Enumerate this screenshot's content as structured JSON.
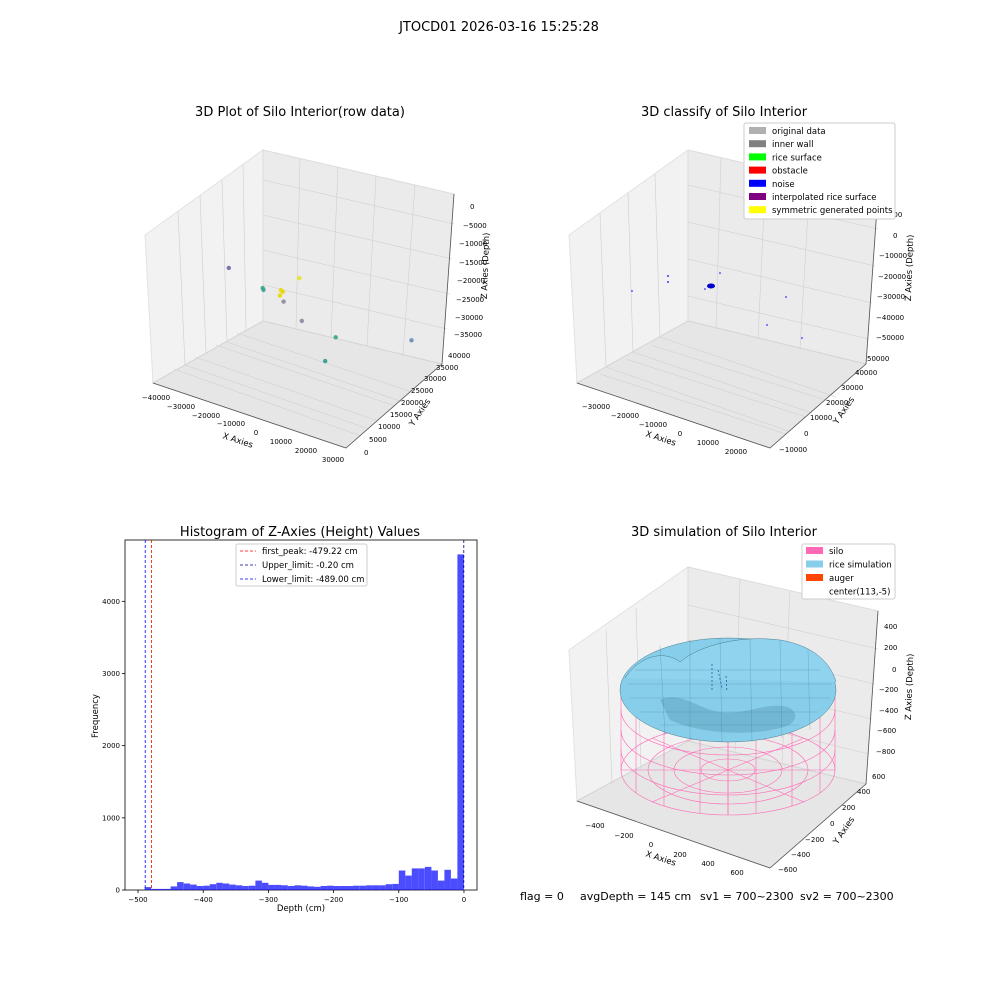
{
  "suptitle": "JTOCD01 2026-03-16 15:25:28",
  "chart_data": [
    {
      "type": "scatter",
      "projection": "3d",
      "title": "3D Plot of Silo Interior(row data)",
      "xlabel": "X Axies",
      "ylabel": "Y Axies",
      "zlabel": "Z Axies (Depth)",
      "xticks": [
        "−40000",
        "−30000",
        "−20000",
        "−10000",
        "0",
        "10000",
        "20000",
        "30000"
      ],
      "yticks": [
        "0",
        "5000",
        "10000",
        "15000",
        "20000",
        "25000",
        "30000",
        "35000",
        "40000"
      ],
      "zticks": [
        "0",
        "−5000",
        "−10000",
        "−15000",
        "−20000",
        "−25000",
        "−30000",
        "−35000"
      ],
      "xlim": [
        -42000,
        32000
      ],
      "ylim": [
        0,
        42000
      ],
      "zlim": [
        -38000,
        1000
      ],
      "points": [
        {
          "x": -3000,
          "y": 17000,
          "z": -12000,
          "color": "#e6e61e"
        },
        {
          "x": -6000,
          "y": 13000,
          "z": -14000,
          "color": "#e8d800"
        },
        {
          "x": -5800,
          "y": 13500,
          "z": -14500,
          "color": "#e8d800"
        },
        {
          "x": -6200,
          "y": 12800,
          "z": -15200,
          "color": "#e8d800"
        },
        {
          "x": -15000,
          "y": 15000,
          "z": -16000,
          "color": "#3aa38b"
        },
        {
          "x": -15000,
          "y": 15300,
          "z": -16500,
          "color": "#3aa38b"
        },
        {
          "x": -8000,
          "y": 16000,
          "z": -18000,
          "color": "#8a8aa0"
        },
        {
          "x": -1000,
          "y": 16000,
          "z": -21000,
          "color": "#8a8aa0"
        },
        {
          "x": -28000,
          "y": 15000,
          "z": -14000,
          "color": "#6a6aa8"
        },
        {
          "x": 16000,
          "y": 12000,
          "z": -20000,
          "color": "#3aa38b"
        },
        {
          "x": 28000,
          "y": 29000,
          "z": -24000,
          "color": "#6a8ab8"
        },
        {
          "x": 18000,
          "y": 6000,
          "z": -23000,
          "color": "#2a9a8a"
        }
      ]
    },
    {
      "type": "scatter",
      "projection": "3d",
      "title": "3D classify of Silo Interior",
      "xlabel": "X Axies",
      "ylabel": "Y Axies",
      "zlabel": "Z Axies (Depth)",
      "xticks": [
        "−30000",
        "−20000",
        "−10000",
        "0",
        "10000",
        "20000"
      ],
      "yticks": [
        "−10000",
        "0",
        "10000",
        "20000",
        "30000",
        "40000",
        "50000"
      ],
      "zticks": [
        "10000",
        "0",
        "−10000",
        "−20000",
        "−30000",
        "−40000",
        "−50000"
      ],
      "legend": [
        {
          "label": "original data",
          "color": "#b0b0b0"
        },
        {
          "label": "inner wall",
          "color": "#808080"
        },
        {
          "label": "rice surface",
          "color": "#00ff00"
        },
        {
          "label": "obstacle",
          "color": "#ff0000"
        },
        {
          "label": "noise",
          "color": "#0000ff"
        },
        {
          "label": "interpolated rice surface",
          "color": "#800080"
        },
        {
          "label": "symmetric generated points",
          "color": "#ffff00"
        }
      ],
      "legend_loc": "upper right"
    },
    {
      "type": "bar",
      "title": "Histogram of Z-Axies (Height) Values",
      "xlabel": "Depth (cm)",
      "ylabel": "Frequency",
      "xlim": [
        -520,
        20
      ],
      "ylim": [
        0,
        4850
      ],
      "xticks": [
        -500,
        -400,
        -300,
        -200,
        -100,
        0
      ],
      "yticks": [
        0,
        1000,
        2000,
        3000,
        4000
      ],
      "bin_width": 10,
      "bins": [
        {
          "x": -490,
          "v": 40
        },
        {
          "x": -480,
          "v": 15
        },
        {
          "x": -470,
          "v": 15
        },
        {
          "x": -460,
          "v": 15
        },
        {
          "x": -450,
          "v": 50
        },
        {
          "x": -440,
          "v": 110
        },
        {
          "x": -430,
          "v": 90
        },
        {
          "x": -420,
          "v": 75
        },
        {
          "x": -410,
          "v": 55
        },
        {
          "x": -400,
          "v": 60
        },
        {
          "x": -390,
          "v": 80
        },
        {
          "x": -380,
          "v": 100
        },
        {
          "x": -370,
          "v": 90
        },
        {
          "x": -360,
          "v": 75
        },
        {
          "x": -350,
          "v": 65
        },
        {
          "x": -340,
          "v": 55
        },
        {
          "x": -330,
          "v": 60
        },
        {
          "x": -320,
          "v": 130
        },
        {
          "x": -310,
          "v": 100
        },
        {
          "x": -300,
          "v": 70
        },
        {
          "x": -290,
          "v": 70
        },
        {
          "x": -280,
          "v": 65
        },
        {
          "x": -270,
          "v": 55
        },
        {
          "x": -260,
          "v": 65
        },
        {
          "x": -250,
          "v": 60
        },
        {
          "x": -240,
          "v": 50
        },
        {
          "x": -230,
          "v": 45
        },
        {
          "x": -220,
          "v": 55
        },
        {
          "x": -210,
          "v": 60
        },
        {
          "x": -200,
          "v": 55
        },
        {
          "x": -190,
          "v": 55
        },
        {
          "x": -180,
          "v": 55
        },
        {
          "x": -170,
          "v": 60
        },
        {
          "x": -160,
          "v": 60
        },
        {
          "x": -150,
          "v": 65
        },
        {
          "x": -140,
          "v": 65
        },
        {
          "x": -130,
          "v": 65
        },
        {
          "x": -120,
          "v": 80
        },
        {
          "x": -110,
          "v": 85
        },
        {
          "x": -100,
          "v": 270
        },
        {
          "x": -90,
          "v": 200
        },
        {
          "x": -80,
          "v": 300
        },
        {
          "x": -70,
          "v": 300
        },
        {
          "x": -60,
          "v": 320
        },
        {
          "x": -50,
          "v": 270
        },
        {
          "x": -40,
          "v": 130
        },
        {
          "x": -30,
          "v": 280
        },
        {
          "x": -20,
          "v": 160
        },
        {
          "x": -10,
          "v": 4650
        }
      ],
      "vlines": [
        {
          "x": -479.22,
          "color": "#ff0000",
          "label": "first_peak: -479.22 cm"
        },
        {
          "x": -0.2,
          "color": "#00008b",
          "label": "Upper_limit: -0.20 cm"
        },
        {
          "x": -489.0,
          "color": "#0000ff",
          "label": "Lower_limit: -489.00 cm"
        }
      ],
      "legend_loc": "upper center"
    },
    {
      "type": "surface",
      "projection": "3d",
      "title": "3D simulation of Silo Interior",
      "xlabel": "X Axies",
      "ylabel": "Y Axies",
      "zlabel": "Z Axies (Depth)",
      "xticks": [
        "−400",
        "−200",
        "0",
        "200",
        "400",
        "600"
      ],
      "yticks": [
        "−600",
        "−400",
        "−200",
        "0",
        "200",
        "400",
        "600"
      ],
      "zticks": [
        "400",
        "200",
        "0",
        "−200",
        "−400",
        "−600",
        "−800"
      ],
      "legend": [
        {
          "label": "silo",
          "color": "#ff69b4"
        },
        {
          "label": "rice simulation",
          "color": "#87ceeb"
        },
        {
          "label": "auger",
          "color": "#ff4500"
        },
        {
          "label": "center(113,-5)",
          "color": ""
        }
      ],
      "legend_loc": "upper right"
    }
  ],
  "status": {
    "flag": "flag = 0",
    "avg": "avgDepth = 145 cm",
    "sv1": "sv1 = 700~2300",
    "sv2": "sv2 = 700~2300"
  }
}
